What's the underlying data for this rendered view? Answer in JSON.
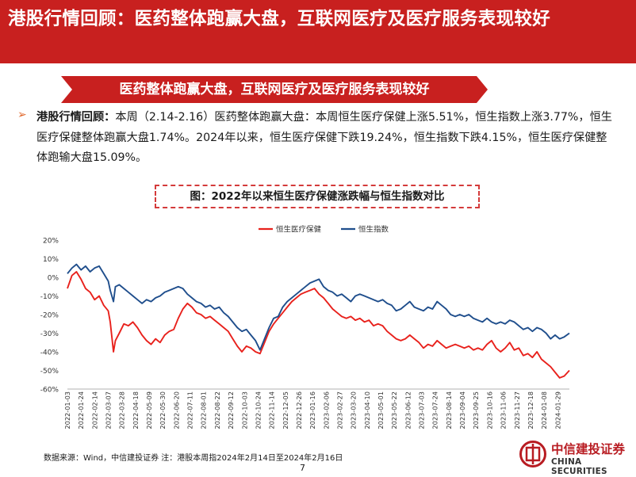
{
  "title": "港股行情回顾：医药整体跑赢大盘，互联网医疗及医疗服务表现较好",
  "banner": "医药整体跑赢大盘，互联网医疗及医疗服务表现较好",
  "bullet_icon": "arrow-bullet-icon",
  "para": {
    "lead": "港股行情回顾：",
    "text": "本周（2.14-2.16）医药整体跑赢大盘：本周恒生医疗保健上涨5.51%，恒生指数上涨3.77%，恒生医疗保健整体跑赢大盘1.74%。2024年以来，恒生医疗保健下跌19.24%，恒生指数下跌4.15%，恒生医疗保健整体跑输大盘15.09%。"
  },
  "chart_title": "图：2022年以来恒生医疗保健涨跌幅与恒生指数对比",
  "source": "数据来源：Wind，中信建投证券  注：港股本周指2024年2月14日至2024年2月16日",
  "page_number": "7",
  "logo": {
    "cn": "中信建投证券",
    "en": "CHINA SECURITIES",
    "icon": "china-securities-logo-icon"
  },
  "colors": {
    "title_bg": "#c8201f",
    "banner_bg": "#c8201f",
    "healthcare": "#e8211c",
    "hsi": "#1f4e8c"
  },
  "chart_data": {
    "type": "line",
    "title": "图：2022年以来恒生医疗保健涨跌幅与恒生指数对比",
    "ylim": [
      -0.6,
      0.2
    ],
    "yticks": [
      "20%",
      "10%",
      "0%",
      "-10%",
      "-20%",
      "-30%",
      "-40%",
      "-50%",
      "-60%"
    ],
    "xlim": [
      "2022-01-03",
      "2024-02-16"
    ],
    "xticks": [
      "2022-01-03",
      "2022-01-24",
      "2022-02-14",
      "2022-03-07",
      "2022-03-28",
      "2022-04-18",
      "2022-05-09",
      "2022-05-30",
      "2022-06-20",
      "2022-07-11",
      "2022-08-01",
      "2022-08-22",
      "2022-09-12",
      "2022-10-03",
      "2022-10-24",
      "2022-11-14",
      "2022-12-05",
      "2022-12-26",
      "2023-01-16",
      "2023-02-06",
      "2023-02-27",
      "2023-03-20",
      "2023-04-10",
      "2023-05-01",
      "2023-05-22",
      "2023-06-12",
      "2023-07-03",
      "2023-07-24",
      "2023-08-14",
      "2023-09-04",
      "2023-09-25",
      "2023-10-16",
      "2023-11-06",
      "2023-11-27",
      "2023-12-18",
      "2024-01-08",
      "2024-01-29"
    ],
    "legend_position": "top",
    "series": [
      {
        "name": "恒生医疗保健",
        "color": "#e8211c",
        "points": [
          [
            "2022-01-03",
            -0.06
          ],
          [
            "2022-01-10",
            0.01
          ],
          [
            "2022-01-17",
            0.03
          ],
          [
            "2022-01-24",
            -0.01
          ],
          [
            "2022-01-31",
            -0.06
          ],
          [
            "2022-02-07",
            -0.08
          ],
          [
            "2022-02-14",
            -0.12
          ],
          [
            "2022-02-21",
            -0.1
          ],
          [
            "2022-02-28",
            -0.15
          ],
          [
            "2022-03-07",
            -0.18
          ],
          [
            "2022-03-10",
            -0.24
          ],
          [
            "2022-03-15",
            -0.4
          ],
          [
            "2022-03-18",
            -0.34
          ],
          [
            "2022-03-24",
            -0.3
          ],
          [
            "2022-03-31",
            -0.25
          ],
          [
            "2022-04-07",
            -0.26
          ],
          [
            "2022-04-14",
            -0.24
          ],
          [
            "2022-04-21",
            -0.27
          ],
          [
            "2022-04-28",
            -0.31
          ],
          [
            "2022-05-05",
            -0.34
          ],
          [
            "2022-05-12",
            -0.36
          ],
          [
            "2022-05-19",
            -0.33
          ],
          [
            "2022-05-26",
            -0.35
          ],
          [
            "2022-06-02",
            -0.31
          ],
          [
            "2022-06-09",
            -0.29
          ],
          [
            "2022-06-16",
            -0.28
          ],
          [
            "2022-06-23",
            -0.22
          ],
          [
            "2022-06-30",
            -0.17
          ],
          [
            "2022-07-07",
            -0.14
          ],
          [
            "2022-07-14",
            -0.16
          ],
          [
            "2022-07-21",
            -0.19
          ],
          [
            "2022-07-28",
            -0.2
          ],
          [
            "2022-08-04",
            -0.22
          ],
          [
            "2022-08-11",
            -0.21
          ],
          [
            "2022-08-18",
            -0.23
          ],
          [
            "2022-08-25",
            -0.25
          ],
          [
            "2022-09-01",
            -0.27
          ],
          [
            "2022-09-08",
            -0.29
          ],
          [
            "2022-09-15",
            -0.33
          ],
          [
            "2022-09-22",
            -0.37
          ],
          [
            "2022-09-29",
            -0.4
          ],
          [
            "2022-10-06",
            -0.37
          ],
          [
            "2022-10-13",
            -0.38
          ],
          [
            "2022-10-20",
            -0.4
          ],
          [
            "2022-10-27",
            -0.41
          ],
          [
            "2022-11-03",
            -0.35
          ],
          [
            "2022-11-10",
            -0.29
          ],
          [
            "2022-11-17",
            -0.25
          ],
          [
            "2022-11-24",
            -0.22
          ],
          [
            "2022-12-01",
            -0.19
          ],
          [
            "2022-12-08",
            -0.16
          ],
          [
            "2022-12-15",
            -0.13
          ],
          [
            "2022-12-22",
            -0.11
          ],
          [
            "2022-12-29",
            -0.09
          ],
          [
            "2023-01-05",
            -0.08
          ],
          [
            "2023-01-12",
            -0.07
          ],
          [
            "2023-01-19",
            -0.06
          ],
          [
            "2023-01-26",
            -0.09
          ],
          [
            "2023-02-02",
            -0.11
          ],
          [
            "2023-02-09",
            -0.14
          ],
          [
            "2023-02-16",
            -0.17
          ],
          [
            "2023-02-23",
            -0.19
          ],
          [
            "2023-03-02",
            -0.21
          ],
          [
            "2023-03-09",
            -0.22
          ],
          [
            "2023-03-16",
            -0.21
          ],
          [
            "2023-03-23",
            -0.23
          ],
          [
            "2023-03-30",
            -0.22
          ],
          [
            "2023-04-06",
            -0.24
          ],
          [
            "2023-04-13",
            -0.23
          ],
          [
            "2023-04-20",
            -0.26
          ],
          [
            "2023-04-27",
            -0.25
          ],
          [
            "2023-05-04",
            -0.26
          ],
          [
            "2023-05-11",
            -0.29
          ],
          [
            "2023-05-18",
            -0.31
          ],
          [
            "2023-05-25",
            -0.33
          ],
          [
            "2023-06-01",
            -0.34
          ],
          [
            "2023-06-08",
            -0.33
          ],
          [
            "2023-06-15",
            -0.31
          ],
          [
            "2023-06-22",
            -0.33
          ],
          [
            "2023-06-29",
            -0.35
          ],
          [
            "2023-07-06",
            -0.38
          ],
          [
            "2023-07-13",
            -0.36
          ],
          [
            "2023-07-20",
            -0.37
          ],
          [
            "2023-07-27",
            -0.34
          ],
          [
            "2023-08-03",
            -0.36
          ],
          [
            "2023-08-10",
            -0.38
          ],
          [
            "2023-08-17",
            -0.37
          ],
          [
            "2023-08-24",
            -0.36
          ],
          [
            "2023-08-31",
            -0.37
          ],
          [
            "2023-09-07",
            -0.38
          ],
          [
            "2023-09-14",
            -0.37
          ],
          [
            "2023-09-21",
            -0.39
          ],
          [
            "2023-09-28",
            -0.38
          ],
          [
            "2023-10-05",
            -0.39
          ],
          [
            "2023-10-12",
            -0.36
          ],
          [
            "2023-10-19",
            -0.34
          ],
          [
            "2023-10-26",
            -0.38
          ],
          [
            "2023-11-02",
            -0.4
          ],
          [
            "2023-11-09",
            -0.38
          ],
          [
            "2023-11-16",
            -0.35
          ],
          [
            "2023-11-23",
            -0.39
          ],
          [
            "2023-11-30",
            -0.38
          ],
          [
            "2023-12-07",
            -0.42
          ],
          [
            "2023-12-14",
            -0.41
          ],
          [
            "2023-12-21",
            -0.43
          ],
          [
            "2023-12-28",
            -0.4
          ],
          [
            "2024-01-04",
            -0.44
          ],
          [
            "2024-01-11",
            -0.46
          ],
          [
            "2024-01-18",
            -0.48
          ],
          [
            "2024-01-25",
            -0.51
          ],
          [
            "2024-02-01",
            -0.54
          ],
          [
            "2024-02-08",
            -0.53
          ],
          [
            "2024-02-16",
            -0.5
          ]
        ]
      },
      {
        "name": "恒生指数",
        "color": "#1f4e8c",
        "points": [
          [
            "2022-01-03",
            0.02
          ],
          [
            "2022-01-10",
            0.05
          ],
          [
            "2022-01-17",
            0.07
          ],
          [
            "2022-01-24",
            0.04
          ],
          [
            "2022-01-31",
            0.06
          ],
          [
            "2022-02-07",
            0.03
          ],
          [
            "2022-02-14",
            0.05
          ],
          [
            "2022-02-21",
            0.06
          ],
          [
            "2022-02-28",
            0.02
          ],
          [
            "2022-03-07",
            -0.02
          ],
          [
            "2022-03-10",
            -0.07
          ],
          [
            "2022-03-15",
            -0.13
          ],
          [
            "2022-03-18",
            -0.05
          ],
          [
            "2022-03-24",
            -0.04
          ],
          [
            "2022-03-31",
            -0.06
          ],
          [
            "2022-04-07",
            -0.08
          ],
          [
            "2022-04-14",
            -0.1
          ],
          [
            "2022-04-21",
            -0.12
          ],
          [
            "2022-04-28",
            -0.14
          ],
          [
            "2022-05-05",
            -0.12
          ],
          [
            "2022-05-12",
            -0.13
          ],
          [
            "2022-05-19",
            -0.11
          ],
          [
            "2022-05-26",
            -0.1
          ],
          [
            "2022-06-02",
            -0.08
          ],
          [
            "2022-06-09",
            -0.07
          ],
          [
            "2022-06-16",
            -0.06
          ],
          [
            "2022-06-23",
            -0.05
          ],
          [
            "2022-06-30",
            -0.06
          ],
          [
            "2022-07-07",
            -0.09
          ],
          [
            "2022-07-14",
            -0.11
          ],
          [
            "2022-07-21",
            -0.13
          ],
          [
            "2022-07-28",
            -0.14
          ],
          [
            "2022-08-04",
            -0.16
          ],
          [
            "2022-08-11",
            -0.15
          ],
          [
            "2022-08-18",
            -0.17
          ],
          [
            "2022-08-25",
            -0.16
          ],
          [
            "2022-09-01",
            -0.19
          ],
          [
            "2022-09-08",
            -0.21
          ],
          [
            "2022-09-15",
            -0.24
          ],
          [
            "2022-09-22",
            -0.27
          ],
          [
            "2022-09-29",
            -0.29
          ],
          [
            "2022-10-06",
            -0.28
          ],
          [
            "2022-10-13",
            -0.31
          ],
          [
            "2022-10-20",
            -0.34
          ],
          [
            "2022-10-27",
            -0.39
          ],
          [
            "2022-11-03",
            -0.33
          ],
          [
            "2022-11-10",
            -0.27
          ],
          [
            "2022-11-17",
            -0.22
          ],
          [
            "2022-11-24",
            -0.21
          ],
          [
            "2022-12-01",
            -0.16
          ],
          [
            "2022-12-08",
            -0.13
          ],
          [
            "2022-12-15",
            -0.11
          ],
          [
            "2022-12-22",
            -0.09
          ],
          [
            "2022-12-29",
            -0.07
          ],
          [
            "2023-01-05",
            -0.05
          ],
          [
            "2023-01-12",
            -0.03
          ],
          [
            "2023-01-19",
            -0.02
          ],
          [
            "2023-01-26",
            -0.01
          ],
          [
            "2023-02-02",
            -0.05
          ],
          [
            "2023-02-09",
            -0.07
          ],
          [
            "2023-02-16",
            -0.08
          ],
          [
            "2023-02-23",
            -0.1
          ],
          [
            "2023-03-02",
            -0.09
          ],
          [
            "2023-03-09",
            -0.11
          ],
          [
            "2023-03-16",
            -0.13
          ],
          [
            "2023-03-23",
            -0.1
          ],
          [
            "2023-03-30",
            -0.09
          ],
          [
            "2023-04-06",
            -0.1
          ],
          [
            "2023-04-13",
            -0.11
          ],
          [
            "2023-04-20",
            -0.12
          ],
          [
            "2023-04-27",
            -0.13
          ],
          [
            "2023-05-04",
            -0.12
          ],
          [
            "2023-05-11",
            -0.14
          ],
          [
            "2023-05-18",
            -0.15
          ],
          [
            "2023-05-25",
            -0.18
          ],
          [
            "2023-06-01",
            -0.17
          ],
          [
            "2023-06-08",
            -0.15
          ],
          [
            "2023-06-15",
            -0.13
          ],
          [
            "2023-06-22",
            -0.16
          ],
          [
            "2023-06-29",
            -0.17
          ],
          [
            "2023-07-06",
            -0.18
          ],
          [
            "2023-07-13",
            -0.16
          ],
          [
            "2023-07-20",
            -0.17
          ],
          [
            "2023-07-27",
            -0.13
          ],
          [
            "2023-08-03",
            -0.15
          ],
          [
            "2023-08-10",
            -0.17
          ],
          [
            "2023-08-17",
            -0.2
          ],
          [
            "2023-08-24",
            -0.21
          ],
          [
            "2023-08-31",
            -0.2
          ],
          [
            "2023-09-07",
            -0.21
          ],
          [
            "2023-09-14",
            -0.2
          ],
          [
            "2023-09-21",
            -0.22
          ],
          [
            "2023-09-28",
            -0.23
          ],
          [
            "2023-10-05",
            -0.24
          ],
          [
            "2023-10-12",
            -0.22
          ],
          [
            "2023-10-19",
            -0.24
          ],
          [
            "2023-10-26",
            -0.25
          ],
          [
            "2023-11-02",
            -0.24
          ],
          [
            "2023-11-09",
            -0.25
          ],
          [
            "2023-11-16",
            -0.23
          ],
          [
            "2023-11-23",
            -0.24
          ],
          [
            "2023-11-30",
            -0.26
          ],
          [
            "2023-12-07",
            -0.28
          ],
          [
            "2023-12-14",
            -0.27
          ],
          [
            "2023-12-21",
            -0.29
          ],
          [
            "2023-12-28",
            -0.27
          ],
          [
            "2024-01-04",
            -0.28
          ],
          [
            "2024-01-11",
            -0.3
          ],
          [
            "2024-01-18",
            -0.33
          ],
          [
            "2024-01-25",
            -0.31
          ],
          [
            "2024-02-01",
            -0.33
          ],
          [
            "2024-02-08",
            -0.32
          ],
          [
            "2024-02-16",
            -0.3
          ]
        ]
      }
    ]
  }
}
